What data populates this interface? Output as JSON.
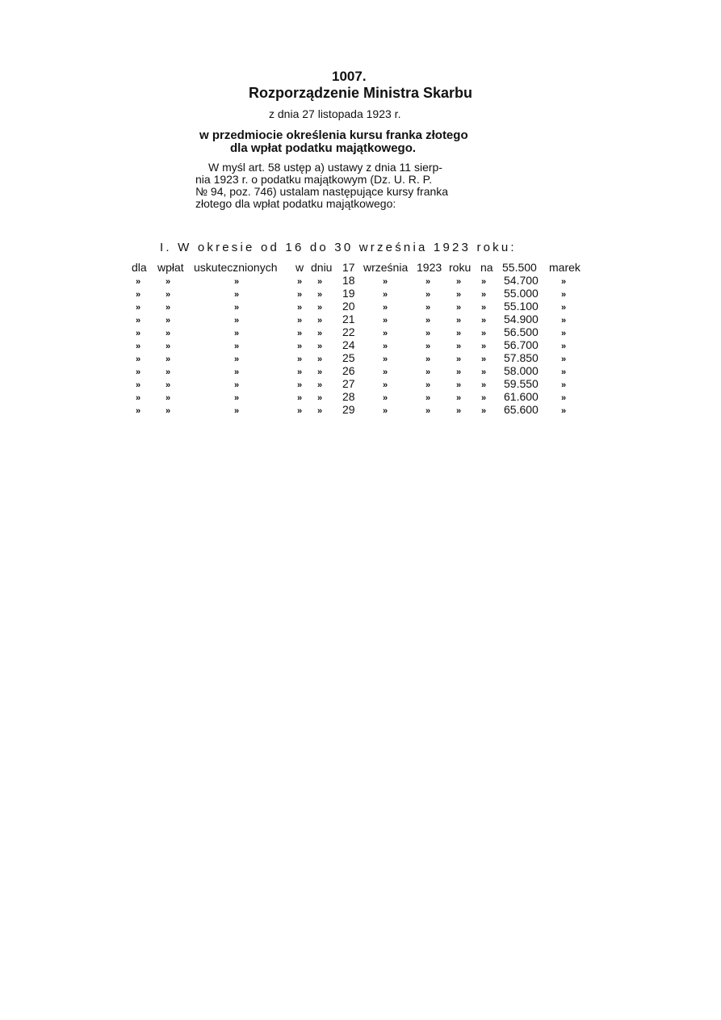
{
  "number": "1007.",
  "title": "Rozporządzenie Ministra Skarbu",
  "date": "z dnia 27 listopada 1923 r.",
  "subject": [
    "w przedmiocie określenia kursu franka złotego",
    "dla wpłat podatku majątkowego."
  ],
  "paragraph": [
    "W myśl art. 58 ustęp a) ustawy z dnia 11 sierp-",
    "nia 1923 r. o podatku majątkowym (Dz. U. R. P.",
    "№ 94, poz. 746) ustalam następujące kursy franka",
    "złotego dla wpłat podatku majątkowego:"
  ],
  "section": "I. W okresie od 16 do 30 września 1923 roku:",
  "table": {
    "header_words": [
      "dla",
      "wpłat",
      "uskutecznionych",
      "w",
      "dniu",
      "17",
      "września",
      "1923",
      "roku",
      "na",
      "55.500",
      "marek"
    ],
    "ditto": "»",
    "rows": [
      {
        "day": "18",
        "value": "54.700"
      },
      {
        "day": "19",
        "value": "55.000"
      },
      {
        "day": "20",
        "value": "55.100"
      },
      {
        "day": "21",
        "value": "54.900"
      },
      {
        "day": "22",
        "value": "56.500"
      },
      {
        "day": "24",
        "value": "56.700"
      },
      {
        "day": "25",
        "value": "57.850"
      },
      {
        "day": "26",
        "value": "58.000"
      },
      {
        "day": "27",
        "value": "59.550"
      },
      {
        "day": "28",
        "value": "61.600"
      },
      {
        "day": "29",
        "value": "65.600"
      }
    ]
  }
}
